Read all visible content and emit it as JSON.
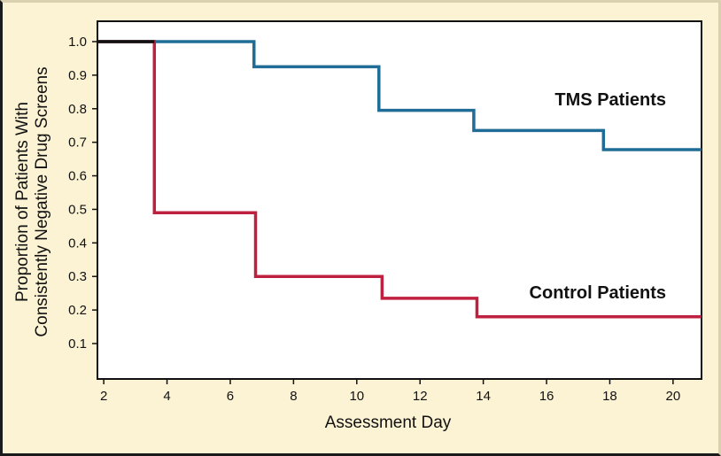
{
  "chart_data": {
    "type": "line",
    "step": true,
    "xlabel": "Assessment Day",
    "ylabel_lines": [
      "Proportion of Patients With",
      "Consistently Negative Drug Screens"
    ],
    "xlim": [
      1.8,
      20.9
    ],
    "ylim": [
      0,
      1.05
    ],
    "xticks": [
      2,
      4,
      6,
      8,
      10,
      12,
      14,
      16,
      18,
      20
    ],
    "yticks": [
      0.1,
      0.2,
      0.3,
      0.4,
      0.5,
      0.6,
      0.7,
      0.8,
      0.9,
      1.0
    ],
    "ytick_labels": [
      "0.1",
      "0.2",
      "0.3",
      "0.4",
      "0.5",
      "0.6",
      "0.7",
      "0.8",
      "0.9",
      "1.0"
    ],
    "grid": false,
    "series": [
      {
        "name": "TMS Patients",
        "color": "#1f6d96",
        "x": [
          1.8,
          6.75,
          10.7,
          13.7,
          17.8,
          20.9
        ],
        "y": [
          1.0,
          0.925,
          0.795,
          0.735,
          0.678,
          0.678
        ]
      },
      {
        "name": "Control Patients",
        "color": "#c0203f",
        "x": [
          1.8,
          3.6,
          6.8,
          10.8,
          13.8,
          20.9
        ],
        "y": [
          1.0,
          0.49,
          0.3,
          0.235,
          0.18,
          0.18
        ]
      }
    ],
    "shared_start": {
      "color": "#111111",
      "x": [
        1.8,
        3.6
      ],
      "y": 1.0
    }
  }
}
